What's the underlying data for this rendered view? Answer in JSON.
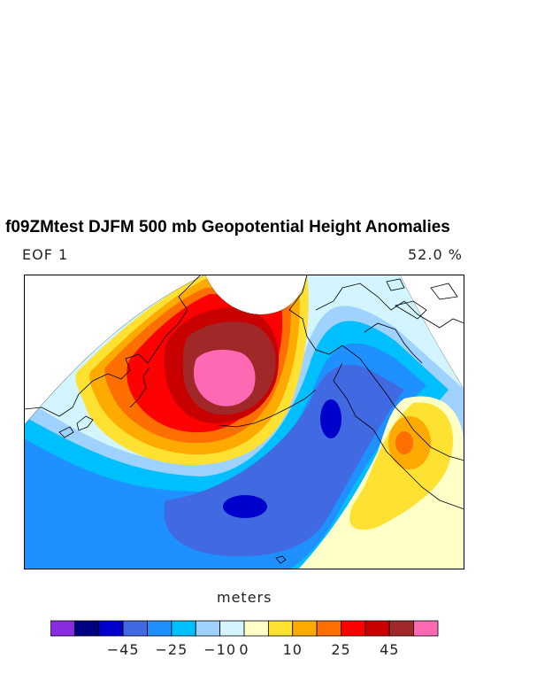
{
  "title": "f09ZMtest DJFM 500 mb Geopotential Height Anomalies",
  "mode_label": "EOF 1",
  "variance_label": "52.0 %",
  "units": "meters",
  "colorbar": {
    "colors": [
      "#8a2be2",
      "#000080",
      "#0000cd",
      "#4169e1",
      "#1e90ff",
      "#00bfff",
      "#a0d2ff",
      "#d2f5ff",
      "#ffffc8",
      "#ffe132",
      "#ffaa00",
      "#ff6e00",
      "#ff0000",
      "#c80000",
      "#a02828",
      "#ff69b4"
    ],
    "tick_labels": [
      {
        "label": "−45",
        "boundary": 3
      },
      {
        "label": "−25",
        "boundary": 5
      },
      {
        "label": "−10",
        "boundary": 7
      },
      {
        "label": "0",
        "boundary": 8
      },
      {
        "label": "10",
        "boundary": 10
      },
      {
        "label": "25",
        "boundary": 12
      },
      {
        "label": "45",
        "boundary": 14
      }
    ]
  }
}
